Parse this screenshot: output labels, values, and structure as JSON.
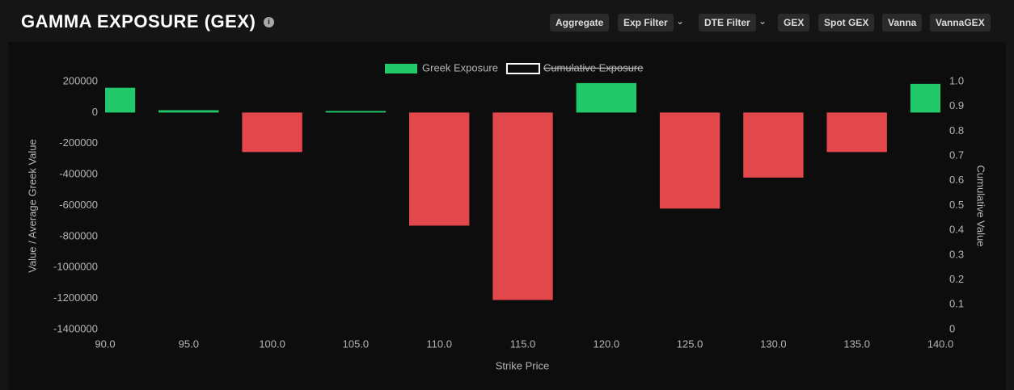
{
  "header": {
    "title": "GAMMA EXPOSURE (GEX)",
    "buttons": [
      "Aggregate",
      "Exp Filter",
      "DTE Filter",
      "GEX",
      "Spot GEX",
      "Vanna",
      "VannaGEX"
    ]
  },
  "chart_data": {
    "type": "bar",
    "x_label": "Strike Price",
    "y_label": "Value / Average Greek Value",
    "y2_label": "Cumulative Value",
    "x": [
      90,
      95,
      100,
      105,
      110,
      115,
      120,
      125,
      130,
      135,
      140
    ],
    "series": [
      {
        "name": "Greek Exposure",
        "color": "#22c96a",
        "negative_color": "#e2474b",
        "values": [
          160000,
          15000,
          -255000,
          10000,
          -730000,
          -1210000,
          190000,
          -620000,
          -420000,
          -255000,
          185000
        ]
      },
      {
        "name": "Cumulative Exposure",
        "axis": "y2",
        "hidden": true,
        "color": "#ffffff"
      }
    ],
    "xlim": [
      90,
      140
    ],
    "xticks": [
      {
        "value": 90,
        "label": "90.0"
      },
      {
        "value": 95,
        "label": "95.0"
      },
      {
        "value": 100,
        "label": "100.0"
      },
      {
        "value": 105,
        "label": "105.0"
      },
      {
        "value": 110,
        "label": "110.0"
      },
      {
        "value": 115,
        "label": "115.0"
      },
      {
        "value": 120,
        "label": "120.0"
      },
      {
        "value": 125,
        "label": "125.0"
      },
      {
        "value": 130,
        "label": "130.0"
      },
      {
        "value": 135,
        "label": "135.0"
      },
      {
        "value": 140,
        "label": "140.0"
      }
    ],
    "ylim": [
      -1400000,
      200000
    ],
    "yticks": [
      -1400000,
      -1200000,
      -1000000,
      -800000,
      -600000,
      -400000,
      -200000,
      0,
      200000
    ],
    "y2lim": [
      0,
      1
    ],
    "y2ticks": [
      0,
      0.1,
      0.2,
      0.3,
      0.4,
      0.5,
      0.6,
      0.7,
      0.8,
      0.9,
      {
        "value": 1,
        "label": "1.0"
      }
    ],
    "legend": "top",
    "grid": false
  }
}
